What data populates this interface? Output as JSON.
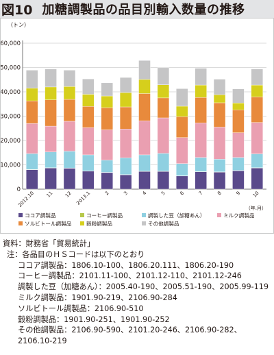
{
  "figure": {
    "number": "図10",
    "title": "加糖調製品の品目別輸入数量の推移"
  },
  "chart_data": {
    "type": "bar",
    "stacked": true,
    "ylabel": "（トン）",
    "xunit": "（年.月）",
    "ylim": [
      0,
      60000
    ],
    "yticks": [
      0,
      10000,
      20000,
      30000,
      40000,
      50000,
      60000
    ],
    "ytick_labels": [
      "0",
      "10,000",
      "20,000",
      "30,000",
      "40,000",
      "50,000",
      "60,000"
    ],
    "grid": true,
    "categories": [
      "2012.10",
      "11",
      "12",
      "2013.1",
      "2",
      "3",
      "4",
      "5",
      "6",
      "7",
      "8",
      "9",
      "10"
    ],
    "series": [
      {
        "name": "ココア調製品",
        "color": "#5a4a8b",
        "values": [
          8000,
          8700,
          8600,
          7400,
          6800,
          5900,
          7300,
          7300,
          5400,
          7100,
          7000,
          7600,
          8700
        ]
      },
      {
        "name": "コーヒー調製品",
        "color": "#b6c84a",
        "values": [
          100,
          100,
          100,
          100,
          100,
          100,
          100,
          100,
          100,
          100,
          100,
          100,
          100
        ]
      },
      {
        "name": "調製した豆（加糖あん）",
        "color": "#8fd0e1",
        "values": [
          6500,
          6500,
          6900,
          6600,
          5000,
          6900,
          6700,
          7300,
          5000,
          5800,
          5200,
          5300,
          5700
        ]
      },
      {
        "name": "ミルク調製品",
        "color": "#ea9fb1",
        "values": [
          12400,
          10600,
          12300,
          11200,
          12500,
          11800,
          14000,
          14600,
          10700,
          14200,
          13200,
          10200,
          12900
        ]
      },
      {
        "name": "ソルビトール調製品",
        "color": "#e88a3c",
        "values": [
          9300,
          10800,
          9000,
          8700,
          9100,
          9100,
          11200,
          8200,
          8600,
          10500,
          10000,
          9400,
          10500
        ]
      },
      {
        "name": "穀粉調製品",
        "color": "#d6cf1c",
        "values": [
          5200,
          5300,
          5300,
          5000,
          4800,
          5900,
          5800,
          5400,
          4300,
          5100,
          3300,
          2800,
          4900
        ]
      },
      {
        "name": "その他調製品",
        "color": "#c5c5c6",
        "values": [
          7400,
          7400,
          6700,
          6300,
          5400,
          6200,
          7800,
          7000,
          7200,
          6900,
          6400,
          5800,
          6600
        ]
      }
    ]
  },
  "notes": {
    "source": "資料：財務省「貿易統計」",
    "note_intro": "注：各品目のＨＳコードは以下のとおり",
    "items": [
      "ココア調製品：1806.10-100、1806.20.111、1806.20-190",
      "コーヒー調製品：2101.11-100、2101.12-110、2101.12-246",
      "調製した豆（加糖あん）：2005.40-190、2005.51-190、2005.99-119",
      "ミルク調製品：1901.90-219、2106.90-284",
      "ソルビトール調製品：2106.90-510",
      "穀粉調製品：1901.90-251、1901.90-252",
      "その他調製品：2106.90-590、2101.20-246、2106.90-282、",
      "2106.10-219"
    ]
  }
}
